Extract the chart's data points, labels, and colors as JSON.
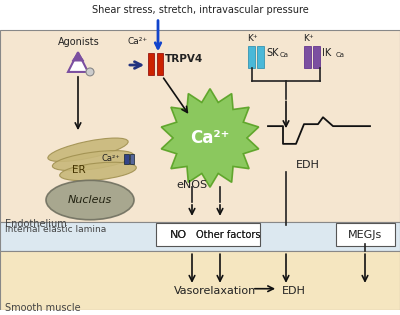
{
  "bg_endothelium": "#f5e6d0",
  "bg_internal": "#dce8f0",
  "bg_smooth": "#f5e6c0",
  "title_text": "Shear stress, stretch, intravascular pressure",
  "label_endothelium": "Endothelium",
  "label_internal": "Internal elastic lamina",
  "label_smooth": "Smooth muscle",
  "label_agonists": "Agonists",
  "label_ca2_top": "Ca²⁺",
  "label_trpv4": "TRPV4",
  "label_sKca": "SK",
  "label_iKca": "IK",
  "label_ca_subscript_sk": "Ca",
  "label_ca_subscript_ik": "Ca",
  "label_k1": "K⁺",
  "label_k2": "K⁺",
  "label_ca2_cloud": "Ca²⁺",
  "label_er": "ER",
  "label_nucleus": "Nucleus",
  "label_ca2_er": "Ca²⁺",
  "label_enos": "eNOS",
  "label_edh_wave": "EDH",
  "label_no": "NO",
  "label_other": "Other factors",
  "label_megjs": "MEGJs",
  "label_vasorelaxation": "Vasorelaxation",
  "label_edh_bottom": "EDH",
  "color_trpv4_red": "#cc2200",
  "color_skca_blue": "#4ab8d8",
  "color_ikca_purple": "#7b4fa0",
  "color_ca_cloud": "#7dc44e",
  "color_er_tan": "#c8b87a",
  "color_nucleus_gray": "#a0a088",
  "color_arrow_dark": "#111111",
  "color_arrow_blue": "#1144cc",
  "color_arrow_purple": "#6633aa"
}
